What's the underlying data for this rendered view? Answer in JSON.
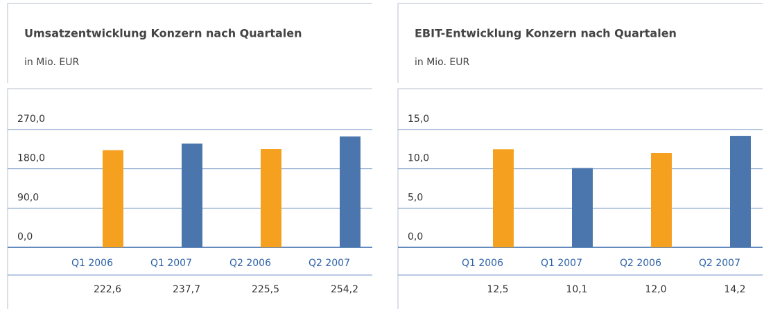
{
  "chart_data": [
    {
      "type": "bar",
      "title": "Umsatzentwicklung Konzern nach Quartalen",
      "subtitle": "in Mio. EUR",
      "categories": [
        "Q1 2006",
        "Q1 2007",
        "Q2 2006",
        "Q2 2007"
      ],
      "values": [
        222.6,
        237.7,
        225.5,
        254.2
      ],
      "value_labels": [
        "222,6",
        "237,7",
        "225,5",
        "254,2"
      ],
      "colors": [
        "#f5a01f",
        "#4a76ad",
        "#f5a01f",
        "#4a76ad"
      ],
      "ylim": [
        0,
        270
      ],
      "yticks": [
        {
          "value": 0,
          "label": "0,0"
        },
        {
          "value": 90,
          "label": "90,0"
        },
        {
          "value": 180,
          "label": "180,0"
        },
        {
          "value": 270,
          "label": "270,0"
        }
      ],
      "grid": true
    },
    {
      "type": "bar",
      "title": "EBIT-Entwicklung Konzern nach Quartalen",
      "subtitle": "in Mio. EUR",
      "categories": [
        "Q1 2006",
        "Q1 2007",
        "Q2 2006",
        "Q2 2007"
      ],
      "values": [
        12.5,
        10.1,
        12.0,
        14.2
      ],
      "value_labels": [
        "12,5",
        "10,1",
        "12,0",
        "14,2"
      ],
      "colors": [
        "#f5a01f",
        "#4a76ad",
        "#f5a01f",
        "#4a76ad"
      ],
      "ylim": [
        0,
        15
      ],
      "yticks": [
        {
          "value": 0,
          "label": "0,0"
        },
        {
          "value": 5,
          "label": "5,0"
        },
        {
          "value": 10,
          "label": "10,0"
        },
        {
          "value": 15,
          "label": "15,0"
        }
      ],
      "grid": true
    }
  ]
}
